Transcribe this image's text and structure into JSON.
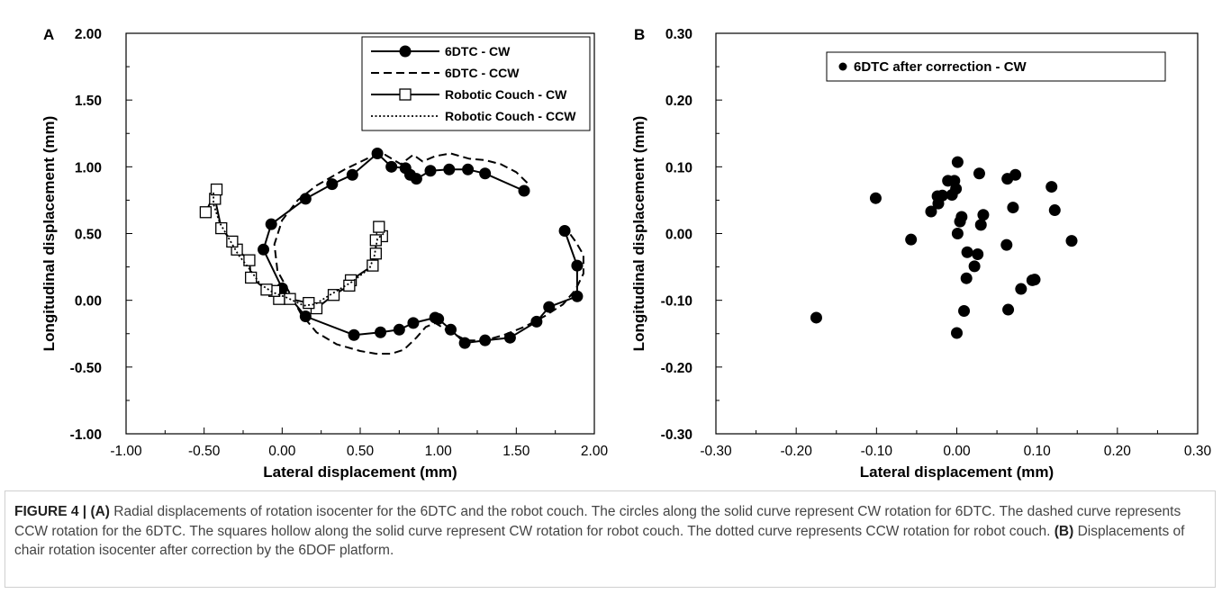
{
  "chart_data": [
    {
      "panel_letter": "A",
      "type": "line",
      "xlabel": "Lateral displacement (mm)",
      "ylabel": "Longitudinal displacement (mm)",
      "xlim": [
        -1.0,
        2.0
      ],
      "ylim": [
        -1.0,
        2.0
      ],
      "xticks": [
        "-1.00",
        "-0.50",
        "0.00",
        "0.50",
        "1.00",
        "1.50",
        "2.00"
      ],
      "yticks": [
        "-1.00",
        "-0.50",
        "0.00",
        "0.50",
        "1.00",
        "1.50",
        "2.00"
      ],
      "xtick_values": [
        -1.0,
        -0.5,
        0.0,
        0.5,
        1.0,
        1.5,
        2.0
      ],
      "ytick_values": [
        -1.0,
        -0.5,
        0.0,
        0.5,
        1.0,
        1.5,
        2.0
      ],
      "grid": false,
      "legend_position": "top-right",
      "series": [
        {
          "name": "6DTC - CW",
          "style": "solid-circle",
          "color": "#000000",
          "points": [
            [
              1.55,
              0.82
            ],
            [
              1.3,
              0.95
            ],
            [
              1.19,
              0.98
            ],
            [
              1.07,
              0.98
            ],
            [
              0.95,
              0.97
            ],
            [
              0.86,
              0.91
            ],
            [
              0.82,
              0.94
            ],
            [
              0.79,
              0.99
            ],
            [
              0.7,
              1.0
            ],
            [
              0.61,
              1.1
            ],
            [
              0.45,
              0.94
            ],
            [
              0.32,
              0.87
            ],
            [
              0.15,
              0.76
            ],
            [
              -0.07,
              0.57
            ],
            [
              -0.12,
              0.38
            ],
            [
              0.0,
              0.09
            ],
            [
              0.15,
              -0.12
            ],
            [
              0.46,
              -0.26
            ],
            [
              0.63,
              -0.24
            ],
            [
              0.75,
              -0.22
            ],
            [
              0.84,
              -0.17
            ],
            [
              0.98,
              -0.13
            ],
            [
              1.0,
              -0.14
            ],
            [
              1.08,
              -0.22
            ],
            [
              1.17,
              -0.32
            ],
            [
              1.3,
              -0.3
            ],
            [
              1.46,
              -0.28
            ],
            [
              1.63,
              -0.16
            ],
            [
              1.71,
              -0.05
            ],
            [
              1.89,
              0.03
            ],
            [
              1.89,
              0.26
            ],
            [
              1.81,
              0.52
            ]
          ]
        },
        {
          "name": "6DTC - CCW",
          "style": "dashed",
          "color": "#000000",
          "points": [
            [
              1.57,
              0.88
            ],
            [
              1.5,
              0.96
            ],
            [
              1.4,
              1.02
            ],
            [
              1.3,
              1.05
            ],
            [
              1.2,
              1.06
            ],
            [
              1.08,
              1.1
            ],
            [
              0.98,
              1.08
            ],
            [
              0.9,
              1.04
            ],
            [
              0.84,
              1.09
            ],
            [
              0.76,
              1.02
            ],
            [
              0.66,
              1.09
            ],
            [
              0.56,
              1.07
            ],
            [
              0.4,
              0.98
            ],
            [
              0.22,
              0.86
            ],
            [
              0.1,
              0.75
            ],
            [
              0.0,
              0.6
            ],
            [
              -0.05,
              0.42
            ],
            [
              -0.03,
              0.22
            ],
            [
              0.05,
              0.05
            ],
            [
              0.12,
              -0.1
            ],
            [
              0.22,
              -0.24
            ],
            [
              0.35,
              -0.33
            ],
            [
              0.5,
              -0.38
            ],
            [
              0.6,
              -0.4
            ],
            [
              0.7,
              -0.4
            ],
            [
              0.78,
              -0.37
            ],
            [
              0.86,
              -0.28
            ],
            [
              0.92,
              -0.2
            ],
            [
              0.98,
              -0.17
            ],
            [
              1.08,
              -0.24
            ],
            [
              1.18,
              -0.3
            ],
            [
              1.3,
              -0.3
            ],
            [
              1.42,
              -0.26
            ],
            [
              1.55,
              -0.2
            ],
            [
              1.68,
              -0.12
            ],
            [
              1.8,
              -0.03
            ],
            [
              1.88,
              0.08
            ],
            [
              1.93,
              0.2
            ],
            [
              1.93,
              0.34
            ],
            [
              1.88,
              0.44
            ],
            [
              1.83,
              0.52
            ]
          ]
        },
        {
          "name": "Robotic Couch - CW",
          "style": "solid-square",
          "color": "#000000",
          "points": [
            [
              0.64,
              0.48
            ],
            [
              0.62,
              0.55
            ],
            [
              0.6,
              0.45
            ],
            [
              0.6,
              0.35
            ],
            [
              0.58,
              0.26
            ],
            [
              0.44,
              0.15
            ],
            [
              0.43,
              0.11
            ],
            [
              0.33,
              0.04
            ],
            [
              0.22,
              -0.06
            ],
            [
              0.17,
              -0.02
            ],
            [
              0.05,
              0.01
            ],
            [
              -0.02,
              0.01
            ],
            [
              -0.05,
              0.07
            ],
            [
              -0.1,
              0.08
            ],
            [
              -0.2,
              0.17
            ],
            [
              -0.21,
              0.3
            ],
            [
              -0.29,
              0.38
            ],
            [
              -0.32,
              0.44
            ],
            [
              -0.39,
              0.54
            ],
            [
              -0.43,
              0.76
            ],
            [
              -0.42,
              0.83
            ],
            [
              -0.49,
              0.66
            ]
          ]
        },
        {
          "name": "Robotic Couch - CCW",
          "style": "dotted",
          "color": "#000000",
          "points": [
            [
              0.65,
              0.5
            ],
            [
              0.61,
              0.46
            ],
            [
              0.59,
              0.33
            ],
            [
              0.56,
              0.24
            ],
            [
              0.45,
              0.14
            ],
            [
              0.32,
              0.05
            ],
            [
              0.21,
              -0.03
            ],
            [
              0.14,
              -0.04
            ],
            [
              0.03,
              0.02
            ],
            [
              -0.06,
              0.06
            ],
            [
              -0.14,
              0.12
            ],
            [
              -0.2,
              0.22
            ],
            [
              -0.28,
              0.34
            ],
            [
              -0.34,
              0.46
            ],
            [
              -0.4,
              0.58
            ],
            [
              -0.44,
              0.72
            ],
            [
              -0.44,
              0.82
            ]
          ]
        }
      ]
    },
    {
      "panel_letter": "B",
      "type": "scatter",
      "xlabel": "Lateral displacement (mm)",
      "ylabel": "Longitudinal displacement (mm)",
      "xlim": [
        -0.3,
        0.3
      ],
      "ylim": [
        -0.3,
        0.3
      ],
      "xticks": [
        "-0.30",
        "-0.20",
        "-0.10",
        "0.00",
        "0.10",
        "0.20",
        "0.30"
      ],
      "yticks": [
        "-0.30",
        "-0.20",
        "-0.10",
        "0.00",
        "0.10",
        "0.20",
        "0.30"
      ],
      "xtick_values": [
        -0.3,
        -0.2,
        -0.1,
        0.0,
        0.1,
        0.2,
        0.3
      ],
      "ytick_values": [
        -0.3,
        -0.2,
        -0.1,
        0.0,
        0.1,
        0.2,
        0.3
      ],
      "grid": false,
      "legend_position": "top-right",
      "series": [
        {
          "name": "6DTC after correction - CW",
          "style": "circle",
          "color": "#000000",
          "points": [
            [
              0.001,
              0.107
            ],
            [
              0.028,
              0.09
            ],
            [
              0.073,
              0.088
            ],
            [
              0.063,
              0.082
            ],
            [
              -0.011,
              0.079
            ],
            [
              -0.003,
              0.079
            ],
            [
              -0.001,
              0.067
            ],
            [
              0.118,
              0.07
            ],
            [
              -0.006,
              0.058
            ],
            [
              -0.018,
              0.057
            ],
            [
              -0.024,
              0.056
            ],
            [
              -0.101,
              0.053
            ],
            [
              -0.023,
              0.045
            ],
            [
              0.07,
              0.039
            ],
            [
              0.122,
              0.035
            ],
            [
              -0.032,
              0.033
            ],
            [
              0.033,
              0.028
            ],
            [
              0.006,
              0.025
            ],
            [
              0.004,
              0.018
            ],
            [
              0.03,
              0.013
            ],
            [
              0.001,
              0.0
            ],
            [
              -0.057,
              -0.009
            ],
            [
              0.143,
              -0.011
            ],
            [
              0.062,
              -0.017
            ],
            [
              0.013,
              -0.028
            ],
            [
              0.026,
              -0.031
            ],
            [
              0.022,
              -0.049
            ],
            [
              0.012,
              -0.067
            ],
            [
              0.097,
              -0.069
            ],
            [
              0.094,
              -0.07
            ],
            [
              0.08,
              -0.083
            ],
            [
              0.064,
              -0.114
            ],
            [
              0.009,
              -0.116
            ],
            [
              -0.175,
              -0.126
            ],
            [
              0.0,
              -0.149
            ]
          ]
        }
      ]
    }
  ],
  "caption": {
    "figure_label": "FIGURE 4 |",
    "a_label": "(A)",
    "a_text": " Radial displacements of rotation isocenter for the 6DTC and the robot couch. The circles along the solid curve represent CW rotation for 6DTC. The dashed curve represents CCW rotation for the 6DTC. The squares hollow along the solid curve represent CW rotation for robot couch. The dotted curve represents CCW rotation for robot couch.",
    "b_label": "(B)",
    "b_text": " Displacements of chair rotation isocenter after correction by the 6DOF platform."
  }
}
